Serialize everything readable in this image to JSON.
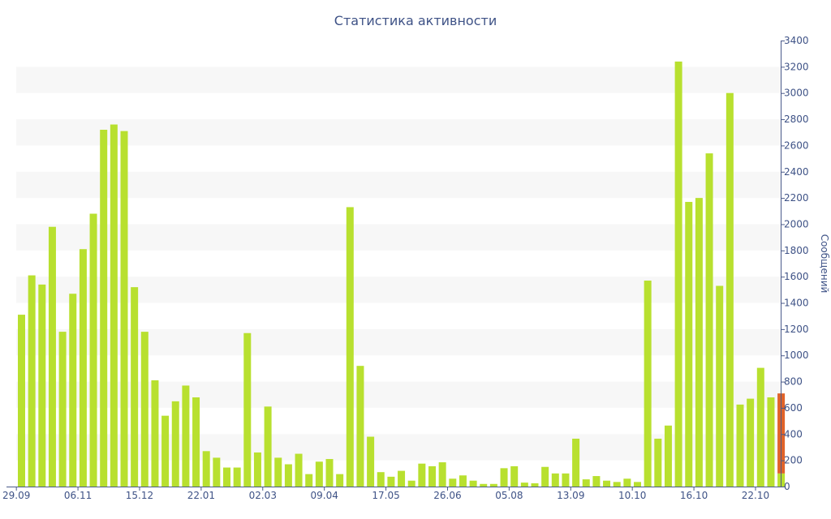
{
  "chart_data": {
    "type": "bar",
    "title": "Статистика активности",
    "ylabel": "Сообщений",
    "xlabel": "",
    "ylim": [
      0,
      3400
    ],
    "yticks": [
      0,
      200,
      400,
      600,
      800,
      1000,
      1200,
      1400,
      1600,
      1800,
      2000,
      2200,
      2400,
      2600,
      2800,
      3000,
      3200,
      3400
    ],
    "grid": "alternating horizontal bands",
    "y_axis_side": "right",
    "xtick_labels": [
      {
        "label": "29.09",
        "index": 0
      },
      {
        "label": "06.11",
        "index": 6
      },
      {
        "label": "15.12",
        "index": 12
      },
      {
        "label": "22.01",
        "index": 18
      },
      {
        "label": "02.03",
        "index": 24
      },
      {
        "label": "09.04",
        "index": 30
      },
      {
        "label": "17.05",
        "index": 36
      },
      {
        "label": "26.06",
        "index": 42
      },
      {
        "label": "05.08",
        "index": 48
      },
      {
        "label": "13.09",
        "index": 54
      },
      {
        "label": "10.10",
        "index": 60
      },
      {
        "label": "16.10",
        "index": 66
      },
      {
        "label": "22.10",
        "index": 72
      }
    ],
    "colors": {
      "bar": "#b8e02f",
      "highlight": "#e0632a",
      "text": "#3e5286"
    },
    "values": [
      1310,
      1610,
      1540,
      1980,
      1180,
      1470,
      1810,
      2080,
      2720,
      2760,
      2710,
      1520,
      1180,
      810,
      540,
      650,
      770,
      680,
      270,
      220,
      145,
      145,
      1170,
      260,
      610,
      220,
      170,
      250,
      95,
      190,
      210,
      95,
      2130,
      920,
      380,
      110,
      75,
      120,
      45,
      175,
      155,
      185,
      60,
      85,
      45,
      20,
      20,
      140,
      155,
      30,
      25,
      150,
      100,
      100,
      365,
      55,
      80,
      45,
      35,
      60,
      35,
      1570,
      365,
      465,
      3240,
      2170,
      2200,
      2540,
      1530,
      3000,
      625,
      670,
      905,
      680,
      710
    ],
    "highlight_last": {
      "value": 710,
      "base": 100
    }
  }
}
